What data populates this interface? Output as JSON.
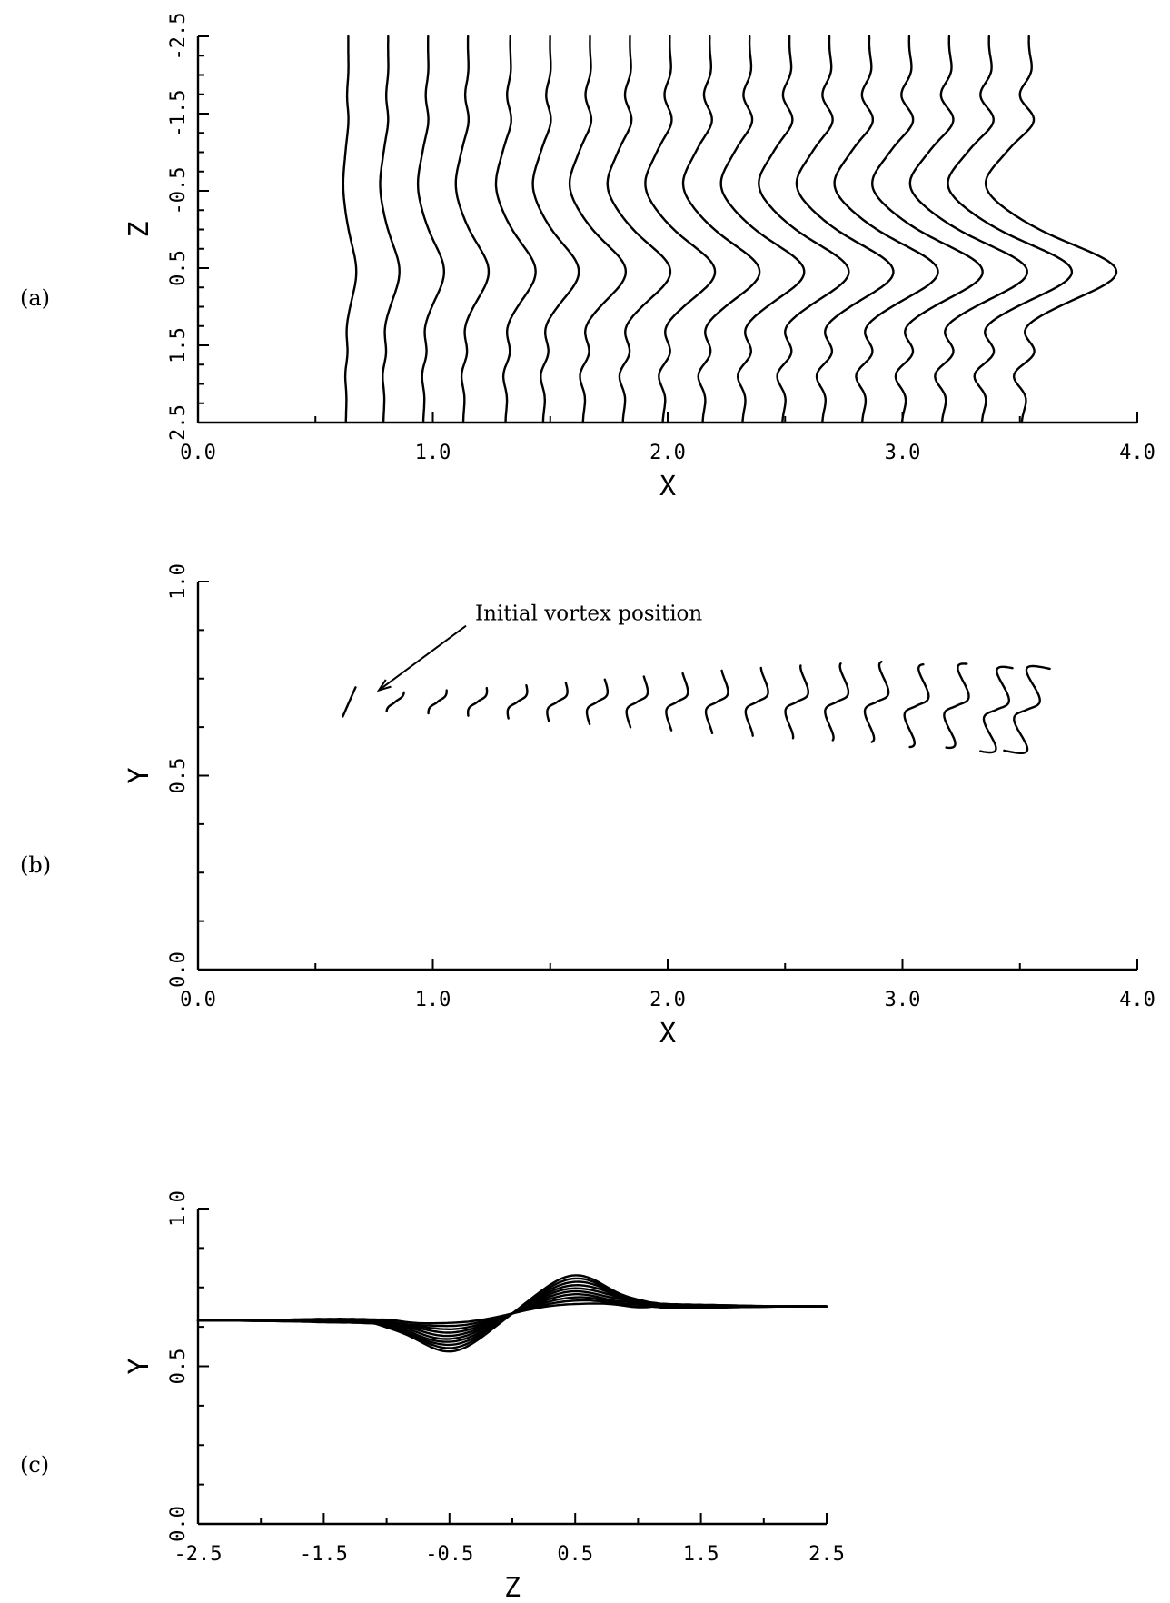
{
  "chart_data": [
    {
      "id": "a",
      "panel_label": "(a)",
      "type": "line",
      "xlabel": "X",
      "ylabel": "Z",
      "xlim": [
        0,
        4
      ],
      "ylim": [
        -2.5,
        2.5
      ],
      "y_inverted": true,
      "grid": false,
      "x_ticks": [
        "0.0",
        "1.0",
        "2.0",
        "3.0",
        "4.0"
      ],
      "y_ticks": [
        "-2.5",
        "-1.5",
        "-0.5",
        "0.5",
        "1.5",
        "2.5"
      ],
      "series": [
        {
          "x0": 0.64,
          "x1": 0.63,
          "amp": 0.04
        },
        {
          "x0": 0.81,
          "x1": 0.79,
          "amp": 0.06
        },
        {
          "x0": 0.98,
          "x1": 0.96,
          "amp": 0.08
        },
        {
          "x0": 1.15,
          "x1": 1.13,
          "amp": 0.1
        },
        {
          "x0": 1.33,
          "x1": 1.31,
          "amp": 0.12
        },
        {
          "x0": 1.5,
          "x1": 1.47,
          "amp": 0.14
        },
        {
          "x0": 1.67,
          "x1": 1.64,
          "amp": 0.17
        },
        {
          "x0": 1.84,
          "x1": 1.81,
          "amp": 0.19
        },
        {
          "x0": 2.01,
          "x1": 1.98,
          "amp": 0.21
        },
        {
          "x0": 2.18,
          "x1": 2.15,
          "amp": 0.23
        },
        {
          "x0": 2.35,
          "x1": 2.32,
          "amp": 0.25
        },
        {
          "x0": 2.52,
          "x1": 2.49,
          "amp": 0.27
        },
        {
          "x0": 2.69,
          "x1": 2.66,
          "amp": 0.29
        },
        {
          "x0": 2.86,
          "x1": 2.83,
          "amp": 0.31
        },
        {
          "x0": 3.03,
          "x1": 3.0,
          "amp": 0.33
        },
        {
          "x0": 3.2,
          "x1": 3.17,
          "amp": 0.35
        },
        {
          "x0": 3.37,
          "x1": 3.34,
          "amp": 0.37
        },
        {
          "x0": 3.54,
          "x1": 3.51,
          "amp": 0.39
        }
      ]
    },
    {
      "id": "b",
      "panel_label": "(b)",
      "type": "line",
      "xlabel": "X",
      "ylabel": "Y",
      "xlim": [
        0,
        4
      ],
      "ylim": [
        0,
        1
      ],
      "grid": false,
      "x_ticks": [
        "0.0",
        "1.0",
        "2.0",
        "3.0",
        "4.0"
      ],
      "y_ticks": [
        "0.0",
        "0.5",
        "1.0"
      ],
      "annotation": {
        "text": "Initial vortex position",
        "x": 1.18,
        "y": 0.9,
        "arrow_to": [
          0.77,
          0.72
        ]
      },
      "series": [
        {
          "x": 0.64,
          "y": 0.69,
          "size": 0.0
        },
        {
          "x": 0.84,
          "y": 0.69,
          "size": 0.06
        },
        {
          "x": 1.02,
          "y": 0.69,
          "size": 0.1
        },
        {
          "x": 1.19,
          "y": 0.69,
          "size": 0.14
        },
        {
          "x": 1.36,
          "y": 0.69,
          "size": 0.18
        },
        {
          "x": 1.53,
          "y": 0.69,
          "size": 0.22
        },
        {
          "x": 1.7,
          "y": 0.69,
          "size": 0.26
        },
        {
          "x": 1.87,
          "y": 0.69,
          "size": 0.3
        },
        {
          "x": 2.04,
          "y": 0.69,
          "size": 0.34
        },
        {
          "x": 2.21,
          "y": 0.69,
          "size": 0.38
        },
        {
          "x": 2.38,
          "y": 0.69,
          "size": 0.42
        },
        {
          "x": 2.55,
          "y": 0.69,
          "size": 0.46
        },
        {
          "x": 2.72,
          "y": 0.69,
          "size": 0.5
        },
        {
          "x": 2.89,
          "y": 0.69,
          "size": 0.55
        },
        {
          "x": 3.06,
          "y": 0.68,
          "size": 0.6
        },
        {
          "x": 3.23,
          "y": 0.68,
          "size": 0.66
        },
        {
          "x": 3.4,
          "y": 0.67,
          "size": 0.73
        },
        {
          "x": 3.53,
          "y": 0.67,
          "size": 0.8
        }
      ]
    },
    {
      "id": "c",
      "panel_label": "(c)",
      "type": "line",
      "xlabel": "Z",
      "ylabel": "Y",
      "xlim": [
        -2.5,
        2.5
      ],
      "ylim": [
        0,
        1
      ],
      "grid": false,
      "x_ticks": [
        "-2.5",
        "-1.5",
        "-0.5",
        "0.5",
        "1.5",
        "2.5"
      ],
      "y_ticks": [
        "0.0",
        "0.5",
        "1.0"
      ],
      "base_y_left": 0.645,
      "base_y_right": 0.69,
      "series": [
        {
          "amp": 0.01
        },
        {
          "amp": 0.02
        },
        {
          "amp": 0.03
        },
        {
          "amp": 0.04
        },
        {
          "amp": 0.05
        },
        {
          "amp": 0.06
        },
        {
          "amp": 0.07
        },
        {
          "amp": 0.08
        },
        {
          "amp": 0.09
        },
        {
          "amp": 0.1
        }
      ]
    }
  ]
}
